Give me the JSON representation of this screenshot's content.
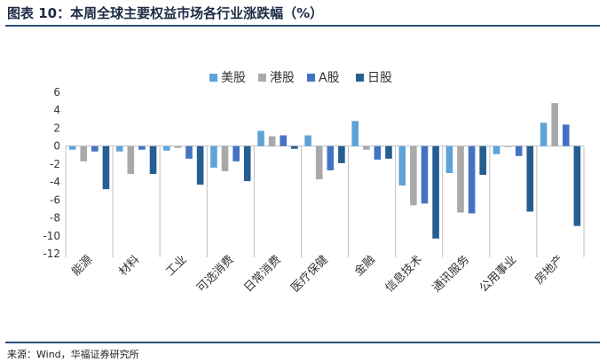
{
  "header": {
    "title": "图表 10：本周全球主要权益市场各行业涨跌幅（%）"
  },
  "footer": {
    "source": "来源：Wind，华福证券研究所"
  },
  "colors": {
    "美股": "#5ea3d8",
    "港股": "#a9a9a9",
    "A股": "#4472c4",
    "日股": "#255e91",
    "rule": "#2e4f7a"
  },
  "chart_data": {
    "type": "bar",
    "title": "本周全球主要权益市场各行业涨跌幅（%）",
    "xlabel": "",
    "ylabel": "",
    "ylim": [
      -12,
      6
    ],
    "yticks": [
      "6",
      "4",
      "2",
      "0",
      "-2",
      "-4",
      "-6",
      "-8",
      "-10",
      "-12"
    ],
    "legend_position": "top",
    "categories": [
      "能源",
      "材料",
      "工业",
      "可选消费",
      "日常消费",
      "医疗保健",
      "金融",
      "信息技术",
      "通讯服务",
      "公用事业",
      "房地产"
    ],
    "series": [
      {
        "name": "美股",
        "values": [
          -0.4,
          -0.6,
          -0.5,
          -2.4,
          1.7,
          1.2,
          2.8,
          -4.4,
          -3.0,
          -0.9,
          2.6
        ]
      },
      {
        "name": "港股",
        "values": [
          -1.7,
          -3.1,
          -0.2,
          -2.8,
          1.1,
          -3.7,
          -0.4,
          -6.6,
          -7.4,
          -0.1,
          4.8
        ]
      },
      {
        "name": "A股",
        "values": [
          -0.6,
          -0.4,
          -1.4,
          -1.7,
          1.2,
          -2.7,
          -1.5,
          -6.4,
          -7.5,
          -1.1,
          2.4
        ]
      },
      {
        "name": "日股",
        "values": [
          -4.8,
          -3.1,
          -4.3,
          -3.9,
          -0.3,
          -1.9,
          -1.4,
          -10.3,
          -3.2,
          -7.3,
          -8.9
        ]
      }
    ]
  }
}
